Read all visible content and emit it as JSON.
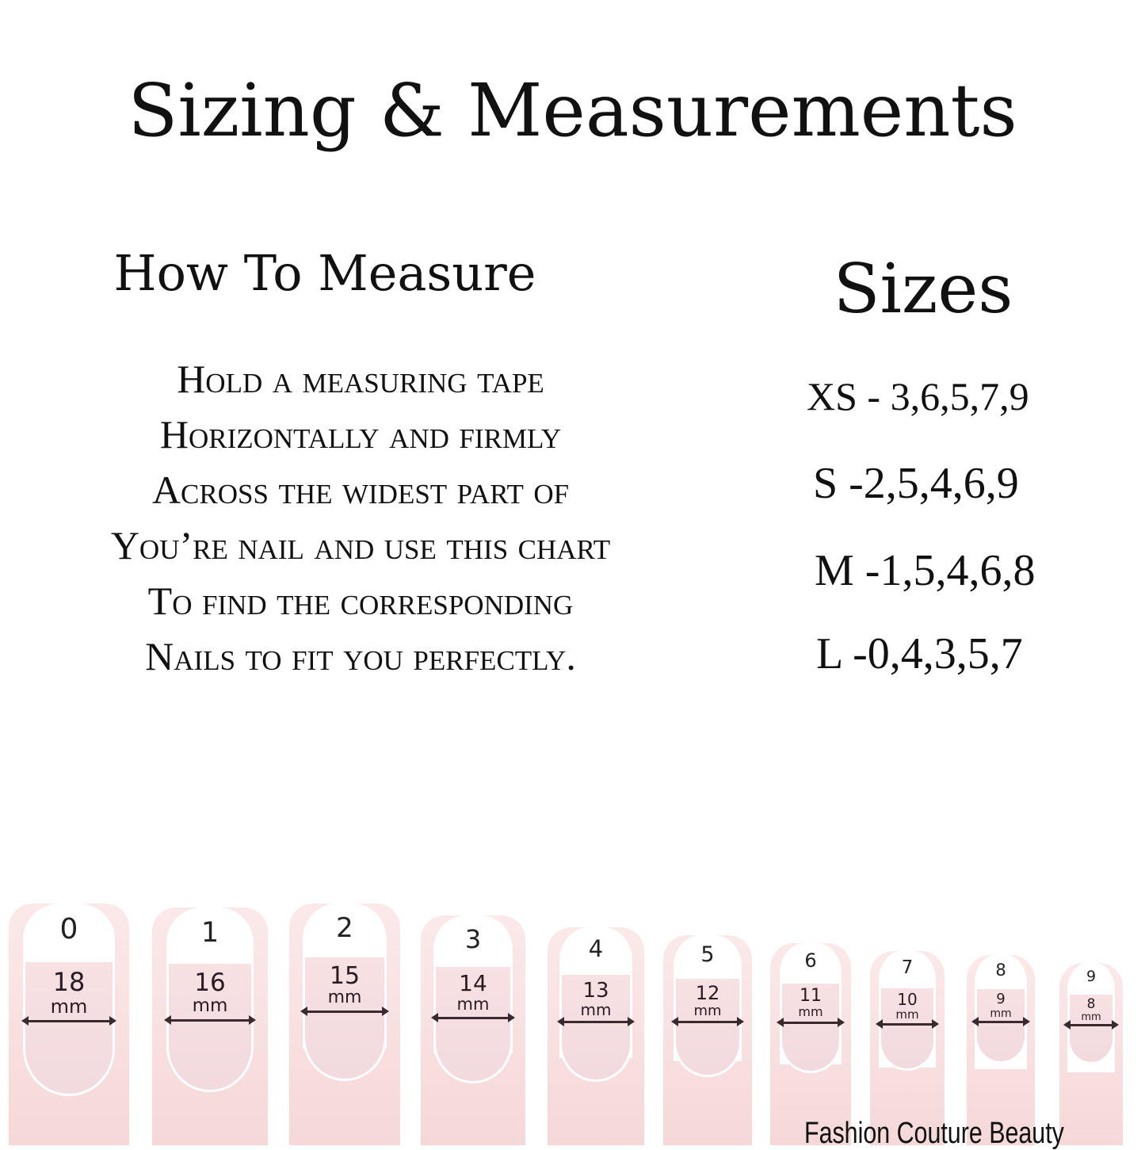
{
  "title": "Sizing & Measurements",
  "how_to": {
    "heading": "How To Measure",
    "lines": [
      "Hold a measuring tape",
      "Horizontally and firmly",
      "Across the widest part of",
      "You’re nail and use this chart",
      "To find the corresponding",
      "Nails to fit you perfectly."
    ]
  },
  "sizes": {
    "heading": "Sizes",
    "items": [
      {
        "label": "XS - 3,6,5,7,9"
      },
      {
        "label": "S -2,5,4,6,9"
      },
      {
        "label": "M -1,5,4,6,8"
      },
      {
        "label": "L -0,4,3,5,7"
      }
    ]
  },
  "nail_chart": {
    "unit": "mm",
    "nails": [
      {
        "number": "0",
        "width": "18"
      },
      {
        "number": "1",
        "width": "16"
      },
      {
        "number": "2",
        "width": "15"
      },
      {
        "number": "3",
        "width": "14"
      },
      {
        "number": "4",
        "width": "13"
      },
      {
        "number": "5",
        "width": "12"
      },
      {
        "number": "6",
        "width": "11"
      },
      {
        "number": "7",
        "width": "10"
      },
      {
        "number": "8",
        "width": "9"
      },
      {
        "number": "9",
        "width": "8"
      }
    ]
  },
  "brand": "Fashion Couture Beauty"
}
